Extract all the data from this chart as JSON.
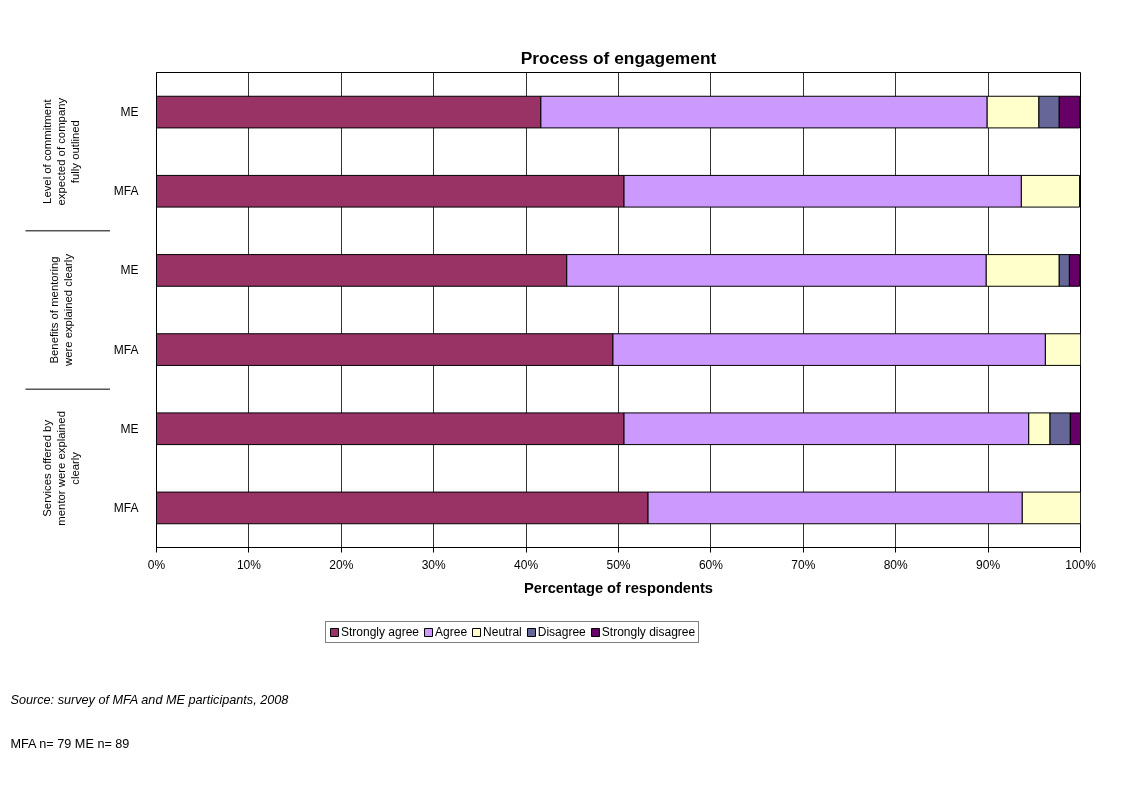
{
  "chart_data": {
    "type": "bar",
    "orientation": "horizontal",
    "stacked": true,
    "title": "Process of engagement",
    "xlabel": "Percentage of respondents",
    "categories": [
      "ME",
      "MFA",
      "ME",
      "MFA",
      "ME",
      "MFA"
    ],
    "series": [
      {
        "name": "Strongly agree",
        "color": "#993366",
        "values": [
          41.6,
          50.6,
          44.4,
          49.4,
          50.6,
          53.2
        ]
      },
      {
        "name": "Agree",
        "color": "#cc99ff",
        "values": [
          48.3,
          43.0,
          45.4,
          46.8,
          43.8,
          40.5
        ]
      },
      {
        "name": "Neutral",
        "color": "#ffffcc",
        "values": [
          5.6,
          6.3,
          7.9,
          3.8,
          2.3,
          6.3
        ]
      },
      {
        "name": "Disagree",
        "color": "#666699",
        "values": [
          2.2,
          0,
          1.1,
          0,
          2.2,
          0
        ]
      },
      {
        "name": "Strongly disagree",
        "color": "#660066",
        "values": [
          2.2,
          0,
          1.1,
          0,
          1.1,
          0
        ]
      }
    ],
    "xlim": [
      0,
      100
    ],
    "xticks": [
      {
        "value": 0,
        "label": "0%"
      },
      {
        "value": 10,
        "label": "10%"
      },
      {
        "value": 20,
        "label": "20%"
      },
      {
        "value": 30,
        "label": "30%"
      },
      {
        "value": 40,
        "label": "40%"
      },
      {
        "value": 50,
        "label": "50%"
      },
      {
        "value": 60,
        "label": "60%"
      },
      {
        "value": 70,
        "label": "70%"
      },
      {
        "value": 80,
        "label": "80%"
      },
      {
        "value": 90,
        "label": "90%"
      },
      {
        "value": 100,
        "label": "100%"
      }
    ],
    "grid": "x",
    "legend": "bottom",
    "annotations": [
      "Level of commitment expected of company fully outlined",
      "Benefits of mentoring were explained clearly",
      "Services offered by mentor were explained clearly",
      "Source: survey of MFA and ME participants, 2008",
      "MFA n= 79 ME n= 89"
    ]
  }
}
